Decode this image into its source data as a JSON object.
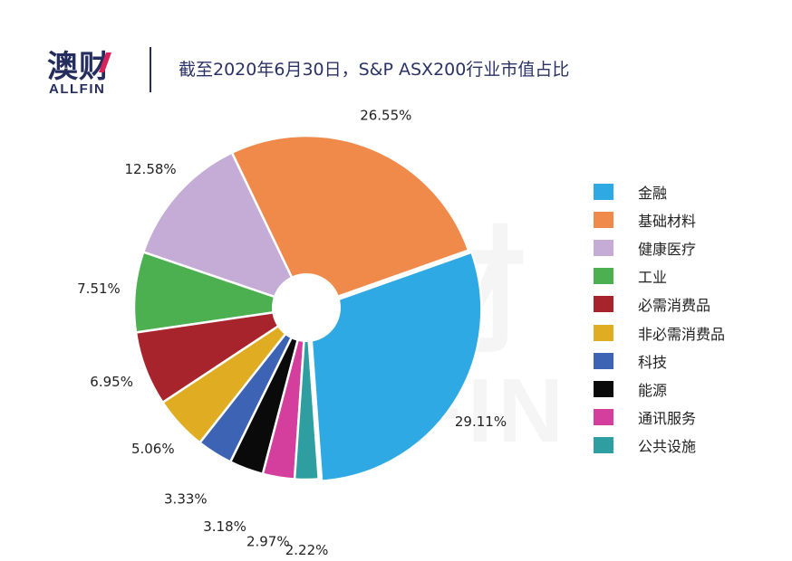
{
  "header": {
    "logo_cn": "澳财",
    "logo_en": "ALLFIN",
    "title": "截至2020年6月30日，S&P ASX200行业市值占比"
  },
  "watermark": {
    "cn": "澳财",
    "en": "ALLFIN"
  },
  "chart_data": {
    "type": "pie",
    "title": "截至2020年6月30日，S&P ASX200行业市值占比",
    "legend_position": "right",
    "categories": [
      "金融",
      "基础材料",
      "健康医疗",
      "工业",
      "必需消费品",
      "非必需消费品",
      "科技",
      "能源",
      "通讯服务",
      "公共设施"
    ],
    "values": [
      29.11,
      26.55,
      12.58,
      7.51,
      6.95,
      5.06,
      3.33,
      3.18,
      2.97,
      2.22
    ],
    "value_labels": [
      "29.11%",
      "26.55%",
      "12.58%",
      "7.51%",
      "6.95%",
      "5.06%",
      "3.33%",
      "3.18%",
      "2.97%",
      "2.22%"
    ],
    "colors": [
      "#2ea9e3",
      "#f08a4b",
      "#c4acd6",
      "#4caf50",
      "#a8242c",
      "#e0ac22",
      "#3c63b4",
      "#0a0a0a",
      "#d43e9c",
      "#2f9ea1"
    ],
    "donut_hole": true
  }
}
